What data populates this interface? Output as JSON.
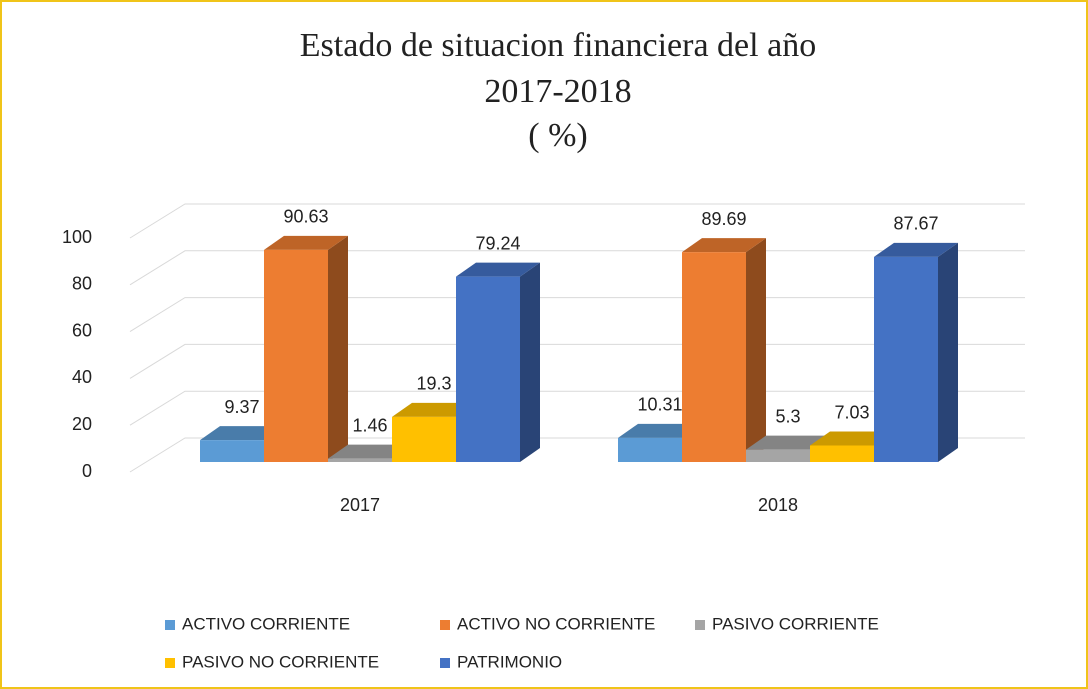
{
  "chart_data": {
    "type": "bar3d",
    "title": [
      "Estado de situacion financiera del año",
      "2017-2018",
      "( %)"
    ],
    "categories": [
      "2017",
      "2018"
    ],
    "series": [
      {
        "name": "ACTIVO CORRIENTE",
        "color": "#5b9bd5",
        "values": [
          9.37,
          10.31
        ]
      },
      {
        "name": "ACTIVO NO CORRIENTE",
        "color": "#ed7d31",
        "values": [
          90.63,
          89.69
        ]
      },
      {
        "name": "PASIVO CORRIENTE",
        "color": "#a5a5a5",
        "values": [
          1.46,
          5.3
        ]
      },
      {
        "name": "PASIVO NO CORRIENTE",
        "color": "#ffc000",
        "values": [
          19.3,
          7.03
        ]
      },
      {
        "name": "PATRIMONIO",
        "color": "#4472c4",
        "values": [
          79.24,
          87.67
        ]
      }
    ],
    "ylim": [
      0,
      100
    ],
    "yticks": [
      0,
      20,
      40,
      60,
      80,
      100
    ],
    "grid": true,
    "legend": "bottom"
  }
}
